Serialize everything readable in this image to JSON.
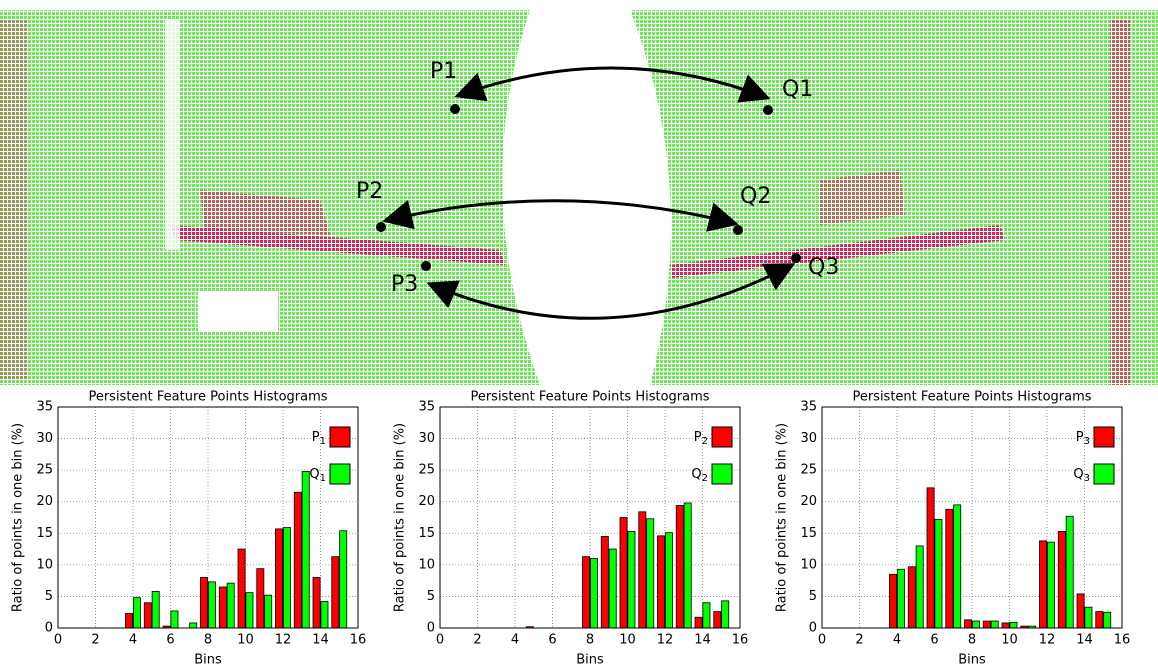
{
  "image_labels": [
    "P1",
    "Q1",
    "P2",
    "Q2",
    "P3",
    "Q3"
  ],
  "chart_data": [
    {
      "type": "bar",
      "title": "Persistent Feature Points Histograms",
      "xlabel": "Bins",
      "ylabel": "Ratio of points in one bin (%)",
      "x": [
        1,
        2,
        3,
        4,
        5,
        6,
        7,
        8,
        9,
        10,
        11,
        12,
        13,
        14,
        15
      ],
      "series": [
        {
          "name": "P1",
          "color": "#ff0000",
          "values": [
            0,
            0,
            0,
            2.3,
            4.0,
            0.3,
            0,
            8.0,
            6.5,
            12.5,
            9.4,
            15.7,
            21.5,
            8.0,
            11.3
          ]
        },
        {
          "name": "Q1",
          "color": "#00ff00",
          "values": [
            0,
            0,
            0,
            4.8,
            5.8,
            2.7,
            0.8,
            7.3,
            7.1,
            5.6,
            5.2,
            15.9,
            24.8,
            4.2,
            15.4
          ]
        }
      ],
      "xlim": [
        0,
        16
      ],
      "ylim": [
        0,
        35
      ],
      "xticks": [
        0,
        2,
        4,
        6,
        8,
        10,
        12,
        14,
        16
      ],
      "yticks": [
        0,
        5,
        10,
        15,
        20,
        25,
        30,
        35
      ],
      "grid": true,
      "legend": "upper right"
    },
    {
      "type": "bar",
      "title": "Persistent Feature Points Histograms",
      "xlabel": "Bins",
      "ylabel": "Ratio of points in one bin (%)",
      "x": [
        1,
        2,
        3,
        4,
        5,
        6,
        7,
        8,
        9,
        10,
        11,
        12,
        13,
        14,
        15
      ],
      "series": [
        {
          "name": "P2",
          "color": "#ff0000",
          "values": [
            0,
            0,
            0,
            0,
            0.2,
            0,
            0,
            11.3,
            14.5,
            17.5,
            18.4,
            14.6,
            19.4,
            1.7,
            2.6
          ]
        },
        {
          "name": "Q2",
          "color": "#00ff00",
          "values": [
            0,
            0,
            0,
            0,
            0,
            0,
            0,
            11.0,
            12.5,
            15.3,
            17.3,
            15.1,
            19.8,
            4.0,
            4.3
          ]
        }
      ],
      "xlim": [
        0,
        16
      ],
      "ylim": [
        0,
        35
      ],
      "xticks": [
        0,
        2,
        4,
        6,
        8,
        10,
        12,
        14,
        16
      ],
      "yticks": [
        0,
        5,
        10,
        15,
        20,
        25,
        30,
        35
      ],
      "grid": true,
      "legend": "upper right"
    },
    {
      "type": "bar",
      "title": "Persistent Feature Points Histograms",
      "xlabel": "Bins",
      "ylabel": "Ratio of points in one bin (%)",
      "x": [
        1,
        2,
        3,
        4,
        5,
        6,
        7,
        8,
        9,
        10,
        11,
        12,
        13,
        14,
        15
      ],
      "series": [
        {
          "name": "P3",
          "color": "#ff0000",
          "values": [
            0,
            0,
            0,
            8.5,
            9.7,
            22.2,
            18.8,
            1.3,
            1.1,
            0.8,
            0.3,
            13.8,
            15.3,
            5.4,
            2.6
          ]
        },
        {
          "name": "Q3",
          "color": "#00ff00",
          "values": [
            0,
            0,
            0,
            9.3,
            13.0,
            17.2,
            19.5,
            1.1,
            1.1,
            0.9,
            0.3,
            13.6,
            17.7,
            3.3,
            2.5
          ]
        }
      ],
      "xlim": [
        0,
        16
      ],
      "ylim": [
        0,
        35
      ],
      "xticks": [
        0,
        2,
        4,
        6,
        8,
        10,
        12,
        14,
        16
      ],
      "yticks": [
        0,
        5,
        10,
        15,
        20,
        25,
        30,
        35
      ],
      "grid": true,
      "legend": "upper right"
    }
  ]
}
